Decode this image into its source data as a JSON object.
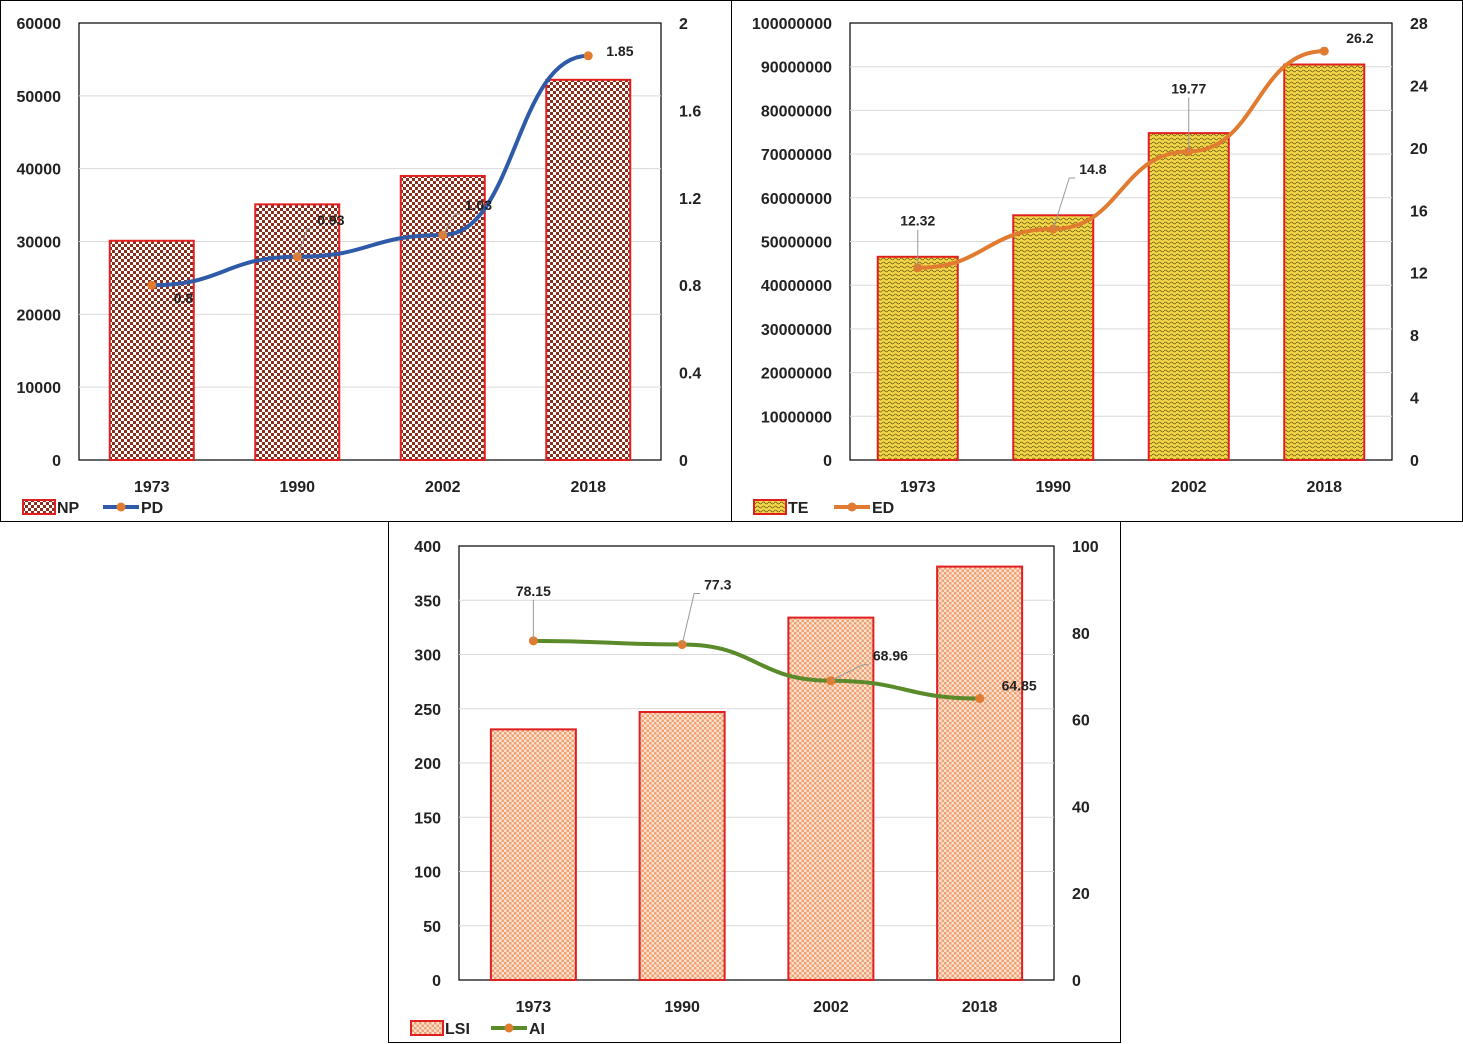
{
  "chart_data": [
    {
      "type": "bar+line",
      "categories": [
        "1973",
        "1990",
        "2002",
        "2018"
      ],
      "series": [
        {
          "name": "NP",
          "kind": "bar",
          "axis": "left",
          "values": [
            30100,
            35100,
            39000,
            52200
          ]
        },
        {
          "name": "PD",
          "kind": "line",
          "axis": "right",
          "values": [
            0.8,
            0.93,
            1.03,
            1.85
          ]
        }
      ],
      "data_labels": [
        "0.8",
        "0.93",
        "1.03",
        "1.85"
      ],
      "y_left": {
        "min": 0,
        "max": 60000,
        "step": 10000,
        "ticks": [
          "0",
          "10000",
          "20000",
          "30000",
          "40000",
          "50000",
          "60000"
        ]
      },
      "y_right": {
        "min": 0,
        "max": 2,
        "step": 0.4,
        "ticks": [
          "0",
          "0.4",
          "0.8",
          "1.2",
          "1.6",
          "2"
        ]
      },
      "colors": {
        "bar_fill": "#8a2e1e",
        "bar_stroke": "#e02020",
        "line": "#2e5aa8",
        "marker": "#e07b30",
        "grid": "#d9d9d9"
      },
      "pattern": "checker",
      "legend": "bottom-left"
    },
    {
      "type": "bar+line",
      "categories": [
        "1973",
        "1990",
        "2002",
        "2018"
      ],
      "series": [
        {
          "name": "TE",
          "kind": "bar",
          "axis": "left",
          "values": [
            46500000,
            56000000,
            74800000,
            90500000
          ]
        },
        {
          "name": "ED",
          "kind": "line",
          "axis": "right",
          "values": [
            12.32,
            14.8,
            19.77,
            26.2
          ]
        }
      ],
      "data_labels": [
        "12.32",
        "14.8",
        "19.77",
        "26.2"
      ],
      "y_left": {
        "min": 0,
        "max": 100000000,
        "step": 10000000,
        "ticks": [
          "0",
          "10000000",
          "20000000",
          "30000000",
          "40000000",
          "50000000",
          "60000000",
          "70000000",
          "80000000",
          "90000000",
          "100000000"
        ]
      },
      "y_right": {
        "min": 0,
        "max": 28,
        "step": 4,
        "ticks": [
          "0",
          "4",
          "8",
          "12",
          "16",
          "20",
          "24",
          "28"
        ]
      },
      "colors": {
        "bar_fill": "#f5d84a",
        "bar_stroke": "#e02020",
        "line": "#e07b30",
        "marker": "#e07b30",
        "grid": "#d9d9d9"
      },
      "pattern": "wave",
      "legend": "bottom-left"
    },
    {
      "type": "bar+line",
      "categories": [
        "1973",
        "1990",
        "2002",
        "2018"
      ],
      "series": [
        {
          "name": "LSI",
          "kind": "bar",
          "axis": "left",
          "values": [
            231,
            247,
            334,
            381
          ]
        },
        {
          "name": "AI",
          "kind": "line",
          "axis": "right",
          "values": [
            78.15,
            77.3,
            68.96,
            64.85
          ]
        }
      ],
      "data_labels": [
        "78.15",
        "77.3",
        "68.96",
        "64.85"
      ],
      "y_left": {
        "min": 0,
        "max": 400,
        "step": 50,
        "ticks": [
          "0",
          "50",
          "100",
          "150",
          "200",
          "250",
          "300",
          "350",
          "400"
        ]
      },
      "y_right": {
        "min": 0,
        "max": 100,
        "step": 20,
        "ticks": [
          "0",
          "20",
          "40",
          "60",
          "80",
          "100"
        ]
      },
      "colors": {
        "bar_fill": "#f0a070",
        "bar_stroke": "#e02020",
        "line": "#5a8a2a",
        "marker": "#e07b30",
        "grid": "#d9d9d9"
      },
      "pattern": "checker-fine",
      "legend": "bottom-left"
    }
  ]
}
